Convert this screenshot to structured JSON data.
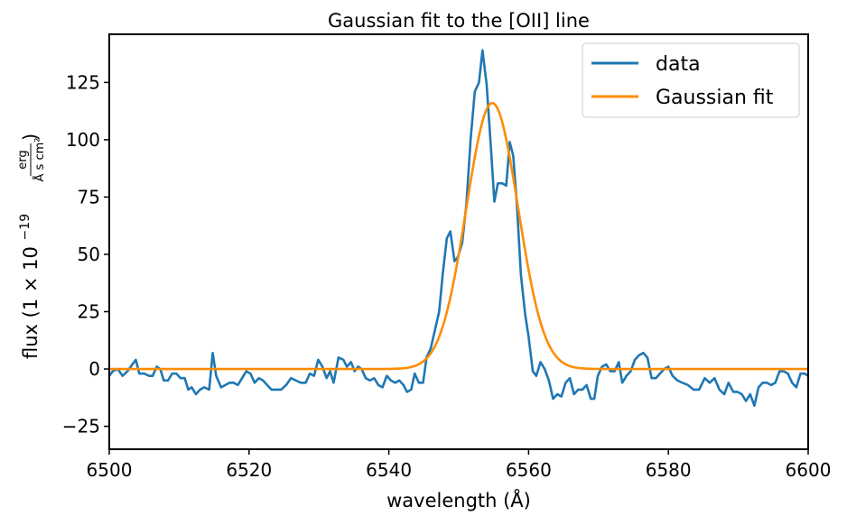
{
  "chart_data": {
    "type": "line",
    "title": "Gaussian fit to the [OII] line",
    "xlabel": "wavelength (Å)",
    "ylabel": {
      "prefix": "flux (1 × 10",
      "exponent": "−19",
      "numerator": "erg",
      "denominator": "Å s cm²",
      "suffix": ")"
    },
    "xlim": [
      6500,
      6600
    ],
    "ylim": [
      -35,
      146
    ],
    "xticks": [
      6500,
      6520,
      6540,
      6560,
      6580,
      6600
    ],
    "yticks": [
      -25,
      0,
      25,
      50,
      75,
      100,
      125
    ],
    "grid": false,
    "legend_position": "top-right",
    "series": [
      {
        "name": "data",
        "color": "#1f77b4",
        "points": [
          [
            6500.0,
            -3
          ],
          [
            6500.5,
            -1
          ],
          [
            6501.2,
            0
          ],
          [
            6501.9,
            -3
          ],
          [
            6502.6,
            -1
          ],
          [
            6503.3,
            2
          ],
          [
            6503.8,
            4
          ],
          [
            6504.3,
            -2
          ],
          [
            6505.0,
            -2
          ],
          [
            6505.7,
            -3
          ],
          [
            6506.2,
            -3
          ],
          [
            6506.8,
            1
          ],
          [
            6507.3,
            0
          ],
          [
            6507.8,
            -5
          ],
          [
            6508.4,
            -5
          ],
          [
            6509.0,
            -2
          ],
          [
            6509.6,
            -2
          ],
          [
            6510.2,
            -4
          ],
          [
            6510.8,
            -4
          ],
          [
            6511.3,
            -9
          ],
          [
            6511.8,
            -8
          ],
          [
            6512.4,
            -11
          ],
          [
            6513.0,
            -9
          ],
          [
            6513.6,
            -8
          ],
          [
            6514.3,
            -9
          ],
          [
            6514.8,
            7
          ],
          [
            6515.3,
            -3
          ],
          [
            6516.0,
            -8
          ],
          [
            6516.6,
            -7
          ],
          [
            6517.2,
            -6
          ],
          [
            6517.8,
            -6
          ],
          [
            6518.4,
            -7
          ],
          [
            6519.0,
            -4
          ],
          [
            6519.6,
            -1
          ],
          [
            6520.2,
            -2
          ],
          [
            6520.8,
            -6
          ],
          [
            6521.4,
            -4
          ],
          [
            6522.0,
            -5
          ],
          [
            6522.6,
            -7
          ],
          [
            6523.2,
            -9
          ],
          [
            6523.9,
            -9
          ],
          [
            6524.6,
            -9
          ],
          [
            6525.3,
            -7
          ],
          [
            6526.0,
            -4
          ],
          [
            6526.7,
            -5
          ],
          [
            6527.4,
            -6
          ],
          [
            6528.1,
            -6
          ],
          [
            6528.7,
            -2
          ],
          [
            6529.3,
            -3
          ],
          [
            6529.9,
            4
          ],
          [
            6530.5,
            1
          ],
          [
            6531.1,
            -4
          ],
          [
            6531.6,
            -1
          ],
          [
            6532.1,
            -6
          ],
          [
            6532.8,
            5
          ],
          [
            6533.5,
            4
          ],
          [
            6534.0,
            1
          ],
          [
            6534.6,
            3
          ],
          [
            6535.1,
            -1
          ],
          [
            6535.6,
            1
          ],
          [
            6536.1,
            0
          ],
          [
            6536.7,
            -4
          ],
          [
            6537.3,
            -5
          ],
          [
            6537.9,
            -4
          ],
          [
            6538.5,
            -7
          ],
          [
            6539.1,
            -8
          ],
          [
            6539.7,
            -3
          ],
          [
            6540.3,
            -5
          ],
          [
            6540.9,
            -6
          ],
          [
            6541.5,
            -5
          ],
          [
            6542.1,
            -7
          ],
          [
            6542.6,
            -10
          ],
          [
            6543.2,
            -9
          ],
          [
            6543.7,
            -2
          ],
          [
            6544.3,
            -6
          ],
          [
            6544.9,
            -6
          ],
          [
            6545.4,
            5
          ],
          [
            6546.0,
            9
          ],
          [
            6546.6,
            17
          ],
          [
            6547.2,
            25
          ],
          [
            6547.7,
            41
          ],
          [
            6548.3,
            57
          ],
          [
            6548.8,
            60
          ],
          [
            6549.4,
            47
          ],
          [
            6549.9,
            49
          ],
          [
            6550.5,
            55
          ],
          [
            6551.1,
            72
          ],
          [
            6551.7,
            100
          ],
          [
            6552.3,
            121
          ],
          [
            6552.9,
            125
          ],
          [
            6553.4,
            139
          ],
          [
            6554.0,
            124
          ],
          [
            6554.6,
            97
          ],
          [
            6555.1,
            73
          ],
          [
            6555.6,
            81
          ],
          [
            6556.2,
            81
          ],
          [
            6556.8,
            80
          ],
          [
            6557.3,
            99
          ],
          [
            6557.8,
            93
          ],
          [
            6558.3,
            73
          ],
          [
            6558.9,
            41
          ],
          [
            6559.5,
            24
          ],
          [
            6560.0,
            14
          ],
          [
            6560.6,
            -1
          ],
          [
            6561.1,
            -3
          ],
          [
            6561.7,
            3
          ],
          [
            6562.3,
            0
          ],
          [
            6562.9,
            -5
          ],
          [
            6563.5,
            -13
          ],
          [
            6564.1,
            -11
          ],
          [
            6564.7,
            -12
          ],
          [
            6565.3,
            -6
          ],
          [
            6565.9,
            -4
          ],
          [
            6566.5,
            -11
          ],
          [
            6567.1,
            -9
          ],
          [
            6567.7,
            -9
          ],
          [
            6568.3,
            -7
          ],
          [
            6568.9,
            -13
          ],
          [
            6569.4,
            -13
          ],
          [
            6569.9,
            -3
          ],
          [
            6570.5,
            1
          ],
          [
            6571.1,
            2
          ],
          [
            6571.7,
            -1
          ],
          [
            6572.3,
            -1
          ],
          [
            6572.9,
            3
          ],
          [
            6573.4,
            -6
          ],
          [
            6574.0,
            -3
          ],
          [
            6574.6,
            -1
          ],
          [
            6575.2,
            4
          ],
          [
            6575.8,
            6
          ],
          [
            6576.4,
            7
          ],
          [
            6577.0,
            5
          ],
          [
            6577.6,
            -4
          ],
          [
            6578.2,
            -4
          ],
          [
            6578.8,
            -2
          ],
          [
            6579.4,
            0
          ],
          [
            6580.0,
            1
          ],
          [
            6580.6,
            -3
          ],
          [
            6581.3,
            -5
          ],
          [
            6582.0,
            -6
          ],
          [
            6582.8,
            -7
          ],
          [
            6583.6,
            -9
          ],
          [
            6584.4,
            -9
          ],
          [
            6585.2,
            -4
          ],
          [
            6585.9,
            -6
          ],
          [
            6586.6,
            -4
          ],
          [
            6587.3,
            -9
          ],
          [
            6588.0,
            -11
          ],
          [
            6588.6,
            -6
          ],
          [
            6589.3,
            -10
          ],
          [
            6589.9,
            -10
          ],
          [
            6590.5,
            -11
          ],
          [
            6591.1,
            -14
          ],
          [
            6591.7,
            -11
          ],
          [
            6592.3,
            -16
          ],
          [
            6592.9,
            -8
          ],
          [
            6593.5,
            -6
          ],
          [
            6594.1,
            -6
          ],
          [
            6594.7,
            -7
          ],
          [
            6595.3,
            -6
          ],
          [
            6595.9,
            -1
          ],
          [
            6596.5,
            -1
          ],
          [
            6597.1,
            -2
          ],
          [
            6597.7,
            -6
          ],
          [
            6598.3,
            -8
          ],
          [
            6598.9,
            -2
          ],
          [
            6599.5,
            -2
          ],
          [
            6600.0,
            -3
          ]
        ]
      },
      {
        "name": "Gaussian fit",
        "color": "#ff8c00",
        "model": "gaussian",
        "amplitude": 116,
        "mean": 6554.8,
        "sigma": 3.7,
        "baseline": 0
      }
    ]
  }
}
